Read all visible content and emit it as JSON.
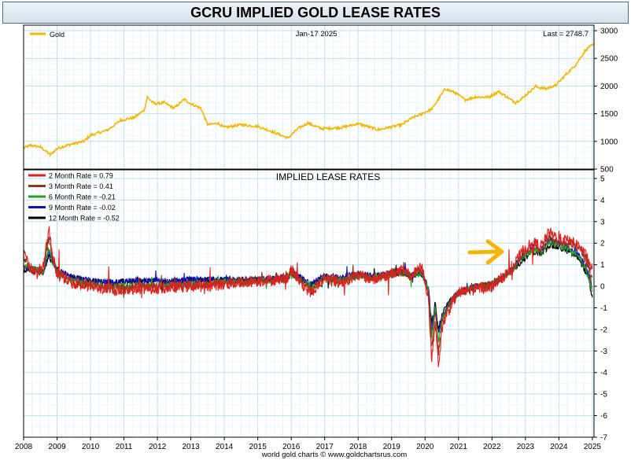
{
  "chart_data": {
    "title": "GCRU IMPLIED GOLD LEASE RATES",
    "footer": "world gold charts © www.goldchartsrus.com",
    "x_ticks": [
      "2008",
      "2009",
      "2010",
      "2011",
      "2012",
      "2013",
      "2014",
      "2015",
      "2016",
      "2017",
      "2018",
      "2019",
      "2020",
      "2021",
      "2022",
      "2023",
      "2024",
      "2025"
    ],
    "x_range": [
      2008,
      2025.05
    ],
    "top_panel": {
      "type": "line",
      "date_label": "Jan-17  2025",
      "last_label": "Last = 2748.7",
      "ylim": [
        500,
        3100
      ],
      "y_ticks": [
        500,
        1000,
        1500,
        2000,
        2500,
        3000
      ],
      "series": [
        {
          "name": "Gold",
          "color": "#f5b400",
          "x": [
            2008.0,
            2008.2,
            2008.5,
            2008.8,
            2009.0,
            2009.3,
            2009.5,
            2009.8,
            2010.0,
            2010.5,
            2010.9,
            2011.3,
            2011.6,
            2011.7,
            2011.9,
            2012.2,
            2012.5,
            2012.8,
            2013.0,
            2013.3,
            2013.5,
            2013.8,
            2014.0,
            2014.5,
            2015.0,
            2015.5,
            2015.9,
            2016.2,
            2016.5,
            2016.9,
            2017.5,
            2018.0,
            2018.6,
            2018.9,
            2019.3,
            2019.6,
            2019.9,
            2020.2,
            2020.6,
            2020.9,
            2021.2,
            2021.5,
            2021.9,
            2022.2,
            2022.7,
            2022.9,
            2023.3,
            2023.6,
            2023.9,
            2024.2,
            2024.5,
            2024.8,
            2024.9,
            2025.05
          ],
          "y": [
            880,
            930,
            900,
            760,
            870,
            930,
            960,
            1000,
            1110,
            1200,
            1380,
            1430,
            1560,
            1800,
            1680,
            1700,
            1600,
            1760,
            1680,
            1600,
            1300,
            1330,
            1250,
            1300,
            1270,
            1160,
            1060,
            1230,
            1330,
            1230,
            1250,
            1320,
            1210,
            1250,
            1300,
            1420,
            1500,
            1580,
            1950,
            1880,
            1750,
            1800,
            1800,
            1900,
            1700,
            1780,
            1990,
            1950,
            2010,
            2200,
            2380,
            2650,
            2700,
            2748.7
          ]
        }
      ]
    },
    "bottom_panel": {
      "type": "line",
      "title": "IMPLIED LEASE RATES",
      "ylim": [
        -7,
        5.4
      ],
      "y_ticks": [
        -7,
        -6,
        -5,
        -4,
        -3,
        -2,
        -1,
        0,
        1,
        2,
        3,
        4,
        5
      ],
      "arrow_color": "#f5b400",
      "x": [
        2008.0,
        2008.3,
        2008.6,
        2008.75,
        2008.85,
        2009.0,
        2009.3,
        2009.6,
        2010.0,
        2010.5,
        2011.0,
        2011.5,
        2012.0,
        2012.5,
        2013.0,
        2013.5,
        2014.0,
        2014.5,
        2015.0,
        2015.5,
        2015.9,
        2016.0,
        2016.3,
        2016.6,
        2017.0,
        2017.5,
        2018.0,
        2018.5,
        2019.0,
        2019.3,
        2019.6,
        2019.9,
        2020.1,
        2020.2,
        2020.3,
        2020.4,
        2020.5,
        2020.6,
        2020.8,
        2021.0,
        2021.3,
        2021.6,
        2022.0,
        2022.3,
        2022.6,
        2022.9,
        2023.2,
        2023.5,
        2023.7,
        2024.0,
        2024.3,
        2024.6,
        2024.85,
        2025.0
      ],
      "series": [
        {
          "name": "2 Month Rate",
          "legend": "2 Month Rate  = 0.79",
          "color": "#e02020",
          "y": [
            1.5,
            0.6,
            0.9,
            2.7,
            1.6,
            0.6,
            0.3,
            0.1,
            0.0,
            -0.15,
            -0.2,
            -0.1,
            -0.1,
            -0.05,
            0.0,
            0.0,
            0.1,
            0.2,
            0.25,
            0.3,
            0.4,
            0.8,
            0.1,
            -0.3,
            0.4,
            0.2,
            0.5,
            0.3,
            0.6,
            0.7,
            0.5,
            0.9,
            -0.5,
            -3.5,
            -1.5,
            -3.8,
            -2.0,
            -1.5,
            -0.8,
            -0.3,
            -0.2,
            -0.1,
            0.0,
            0.4,
            0.8,
            1.6,
            2.0,
            1.9,
            2.5,
            2.2,
            2.1,
            1.9,
            1.3,
            0.79
          ]
        },
        {
          "name": "3 Month Rate",
          "legend": "3 Month Rate  = 0.41",
          "color": "#8b3a1a",
          "y": [
            1.3,
            0.7,
            0.8,
            2.3,
            1.4,
            0.6,
            0.3,
            0.15,
            0.05,
            -0.1,
            -0.1,
            0.0,
            0.0,
            0.0,
            0.05,
            0.05,
            0.15,
            0.2,
            0.25,
            0.3,
            0.4,
            0.7,
            0.2,
            -0.2,
            0.4,
            0.25,
            0.5,
            0.35,
            0.6,
            0.7,
            0.5,
            0.8,
            -0.3,
            -2.8,
            -1.2,
            -3.0,
            -1.8,
            -1.3,
            -0.7,
            -0.3,
            -0.15,
            -0.05,
            0.05,
            0.4,
            0.8,
            1.5,
            1.9,
            1.8,
            2.3,
            2.1,
            2.0,
            1.8,
            1.1,
            0.41
          ]
        },
        {
          "name": "6 Month Rate",
          "legend": "6 Month Rate  = -0.21",
          "color": "#22a022",
          "y": [
            1.0,
            0.8,
            0.7,
            1.8,
            1.2,
            0.7,
            0.35,
            0.2,
            0.1,
            0.0,
            0.0,
            0.05,
            0.05,
            0.05,
            0.1,
            0.1,
            0.2,
            0.2,
            0.25,
            0.3,
            0.45,
            0.6,
            0.25,
            -0.1,
            0.4,
            0.3,
            0.5,
            0.4,
            0.5,
            0.6,
            0.5,
            0.6,
            -0.2,
            -2.3,
            -1.0,
            -2.5,
            -1.6,
            -1.2,
            -0.6,
            -0.3,
            -0.1,
            0.0,
            0.1,
            0.4,
            0.7,
            1.3,
            1.7,
            1.6,
            2.0,
            1.9,
            1.7,
            1.4,
            0.6,
            -0.21
          ]
        },
        {
          "name": "9 Month Rate",
          "legend": "9 Month Rate  = -0.02",
          "color": "#1010c0",
          "y": [
            0.9,
            0.8,
            0.7,
            1.6,
            1.2,
            0.8,
            0.5,
            0.35,
            0.25,
            0.2,
            0.2,
            0.25,
            0.25,
            0.25,
            0.3,
            0.3,
            0.3,
            0.3,
            0.3,
            0.35,
            0.5,
            0.7,
            0.4,
            0.1,
            0.5,
            0.4,
            0.6,
            0.5,
            0.6,
            0.7,
            0.6,
            0.6,
            -0.1,
            -2.0,
            -0.9,
            -2.2,
            -1.5,
            -1.1,
            -0.6,
            -0.3,
            -0.1,
            0.0,
            0.1,
            0.4,
            0.8,
            1.4,
            1.8,
            1.7,
            2.2,
            2.0,
            1.8,
            1.5,
            0.8,
            -0.02
          ]
        },
        {
          "name": "12 Month Rate",
          "legend": "12 Month Rate  = -0.52",
          "color": "#000000",
          "y": [
            0.8,
            0.7,
            0.6,
            1.4,
            1.1,
            0.8,
            0.5,
            0.35,
            0.25,
            0.2,
            0.2,
            0.25,
            0.25,
            0.25,
            0.3,
            0.3,
            0.3,
            0.3,
            0.3,
            0.35,
            0.45,
            0.6,
            0.35,
            0.05,
            0.45,
            0.35,
            0.55,
            0.45,
            0.55,
            0.6,
            0.55,
            0.55,
            -0.1,
            -1.8,
            -0.8,
            -2.0,
            -1.4,
            -1.0,
            -0.6,
            -0.3,
            -0.1,
            0.0,
            0.1,
            0.35,
            0.7,
            1.2,
            1.6,
            1.5,
            1.9,
            1.8,
            1.6,
            1.3,
            0.5,
            -0.52
          ]
        }
      ]
    }
  }
}
